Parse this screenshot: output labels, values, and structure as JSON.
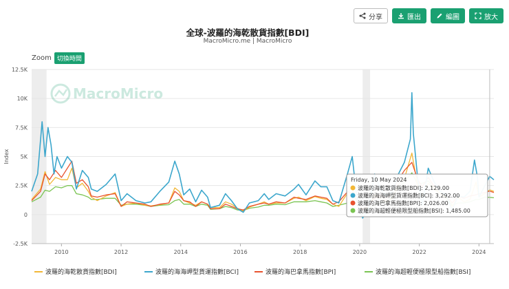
{
  "toolbar": {
    "share_label": "分享",
    "export_label": "匯出",
    "edit_label": "編圖",
    "fullscreen_label": "放大"
  },
  "zoom": {
    "label": "Zoom",
    "toggle_label": "切換時間"
  },
  "watermark": "MacroMicro",
  "colors": {
    "BDI": "#f2b736",
    "BCI": "#3ba6cc",
    "BPI": "#e8522e",
    "BSI": "#7ac452",
    "accent": "#1aa071",
    "recession": "#ededed"
  },
  "chart_data": {
    "type": "line",
    "title": "全球-波羅的海乾散貨指數[BDI]",
    "subtitle": "MacroMicro.me | MacroMicro",
    "ylabel": "Index",
    "ylim": [
      -2500,
      12500
    ],
    "yticks": [
      -2500,
      0,
      2500,
      5000,
      7500,
      10000,
      12500
    ],
    "ytick_labels": [
      "-2.5K",
      "0",
      "2.5K",
      "5K",
      "7.5K",
      "10K",
      "12.5K"
    ],
    "xlim": [
      2009.0,
      2024.5
    ],
    "xticks": [
      2010,
      2012,
      2014,
      2016,
      2018,
      2020,
      2022,
      2024
    ],
    "xtick_labels": [
      "2010",
      "2012",
      "2014",
      "2016",
      "2018",
      "2020",
      "2022",
      "2024"
    ],
    "shaded_periods": [
      [
        2009.0,
        2009.5
      ],
      [
        2020.1,
        2020.35
      ]
    ],
    "tooltip": {
      "date": "Friday, 10 May 2024",
      "rows": [
        {
          "key": "BDI",
          "text": "波羅的海乾散貨指數[BDI]: 2,129.00"
        },
        {
          "key": "BCI",
          "text": "波羅的海海岬型貨運指數[BCI]: 3,292.00"
        },
        {
          "key": "BPI",
          "text": "波羅的海巴拿馬指數[BPI]: 2,026.00"
        },
        {
          "key": "BSI",
          "text": "波羅的海超輕便極限型船指數[BSI]: 1,485.00"
        }
      ]
    },
    "legend_position": "bottom",
    "series": [
      {
        "key": "BDI",
        "name": "波羅的海乾散貨指數[BDI]",
        "x": [
          2009.0,
          2009.3,
          2009.45,
          2009.6,
          2009.8,
          2010.0,
          2010.2,
          2010.35,
          2010.5,
          2010.7,
          2010.9,
          2011.0,
          2011.2,
          2011.5,
          2011.8,
          2012.0,
          2012.2,
          2012.5,
          2012.8,
          2013.0,
          2013.3,
          2013.6,
          2013.8,
          2013.95,
          2014.1,
          2014.3,
          2014.5,
          2014.7,
          2014.9,
          2015.0,
          2015.3,
          2015.5,
          2015.7,
          2015.9,
          2016.1,
          2016.3,
          2016.6,
          2016.8,
          2016.95,
          2017.2,
          2017.5,
          2017.8,
          2017.95,
          2018.2,
          2018.5,
          2018.7,
          2018.9,
          2019.1,
          2019.3,
          2019.6,
          2019.75,
          2019.9,
          2020.1,
          2020.3,
          2020.5,
          2020.7,
          2020.9,
          2021.1,
          2021.3,
          2021.5,
          2021.75,
          2021.95,
          2022.1,
          2022.3,
          2022.5,
          2022.7,
          2022.9,
          2023.1,
          2023.3,
          2023.5,
          2023.7,
          2023.9,
          2024.0,
          2024.2,
          2024.36,
          2024.5
        ],
        "y": [
          1300,
          2200,
          3700,
          2600,
          3200,
          3000,
          3000,
          4000,
          2300,
          2700,
          2000,
          1500,
          1200,
          1600,
          1900,
          700,
          900,
          1000,
          800,
          750,
          850,
          1000,
          2300,
          2000,
          1200,
          1000,
          800,
          1100,
          900,
          600,
          600,
          1100,
          900,
          550,
          300,
          650,
          900,
          1100,
          900,
          1000,
          1000,
          1400,
          1500,
          1200,
          1550,
          1400,
          1300,
          900,
          700,
          1900,
          2400,
          1100,
          500,
          600,
          1700,
          1400,
          1100,
          1400,
          2600,
          3100,
          5300,
          2400,
          1600,
          2700,
          2200,
          1800,
          1400,
          700,
          1500,
          1100,
          1300,
          2800,
          1500,
          1800,
          2129,
          2000
        ]
      },
      {
        "key": "BCI",
        "name": "波羅的海海岬型貨運指數[BCI]",
        "x": [
          2009.0,
          2009.2,
          2009.35,
          2009.45,
          2009.55,
          2009.65,
          2009.75,
          2009.85,
          2010.0,
          2010.2,
          2010.35,
          2010.5,
          2010.7,
          2010.9,
          2011.0,
          2011.2,
          2011.5,
          2011.8,
          2012.0,
          2012.2,
          2012.5,
          2012.8,
          2013.0,
          2013.3,
          2013.6,
          2013.8,
          2013.95,
          2014.1,
          2014.3,
          2014.5,
          2014.7,
          2014.9,
          2015.0,
          2015.3,
          2015.5,
          2015.7,
          2015.9,
          2016.1,
          2016.3,
          2016.6,
          2016.8,
          2016.95,
          2017.2,
          2017.5,
          2017.8,
          2017.95,
          2018.2,
          2018.5,
          2018.7,
          2018.9,
          2019.1,
          2019.3,
          2019.6,
          2019.75,
          2019.9,
          2020.1,
          2020.3,
          2020.5,
          2020.7,
          2020.9,
          2021.1,
          2021.3,
          2021.5,
          2021.7,
          2021.75,
          2021.8,
          2021.95,
          2022.1,
          2022.3,
          2022.5,
          2022.7,
          2022.9,
          2023.1,
          2023.3,
          2023.5,
          2023.7,
          2023.85,
          2023.95,
          2024.0,
          2024.2,
          2024.36,
          2024.5
        ],
        "y": [
          2000,
          3500,
          8000,
          5000,
          7500,
          6000,
          3500,
          5000,
          4000,
          5000,
          4500,
          2200,
          3800,
          3200,
          2200,
          2000,
          2600,
          3500,
          1200,
          1800,
          1200,
          1000,
          1100,
          2000,
          2800,
          4600,
          3500,
          1700,
          2200,
          1100,
          2100,
          1500,
          600,
          800,
          1800,
          1200,
          500,
          200,
          1000,
          1200,
          1800,
          1300,
          1800,
          1600,
          2200,
          2600,
          1700,
          2900,
          2400,
          2400,
          1200,
          1000,
          3600,
          5000,
          1500,
          -300,
          500,
          3500,
          2200,
          1600,
          2000,
          3500,
          4500,
          6500,
          10500,
          7000,
          3000,
          800,
          4000,
          2800,
          2000,
          1700,
          400,
          1600,
          1500,
          2000,
          4700,
          3200,
          1500,
          2500,
          3292,
          3000
        ]
      },
      {
        "key": "BPI",
        "name": "波羅的海巴拿馬指數[BPI]",
        "x": [
          2009.0,
          2009.3,
          2009.45,
          2009.6,
          2009.8,
          2010.0,
          2010.2,
          2010.35,
          2010.5,
          2010.7,
          2010.9,
          2011.0,
          2011.2,
          2011.5,
          2011.8,
          2012.0,
          2012.2,
          2012.5,
          2012.8,
          2013.0,
          2013.3,
          2013.6,
          2013.8,
          2013.95,
          2014.1,
          2014.3,
          2014.5,
          2014.7,
          2014.9,
          2015.0,
          2015.3,
          2015.5,
          2015.7,
          2015.9,
          2016.1,
          2016.3,
          2016.6,
          2016.8,
          2016.95,
          2017.2,
          2017.5,
          2017.8,
          2017.95,
          2018.2,
          2018.5,
          2018.7,
          2018.9,
          2019.1,
          2019.3,
          2019.6,
          2019.75,
          2019.9,
          2020.1,
          2020.3,
          2020.5,
          2020.7,
          2020.9,
          2021.1,
          2021.3,
          2021.5,
          2021.75,
          2021.95,
          2022.1,
          2022.3,
          2022.5,
          2022.7,
          2022.9,
          2023.1,
          2023.3,
          2023.5,
          2023.7,
          2023.9,
          2024.0,
          2024.2,
          2024.36,
          2024.5
        ],
        "y": [
          1200,
          2000,
          3500,
          3000,
          3800,
          3200,
          4000,
          4600,
          2700,
          3000,
          2400,
          1600,
          1500,
          1700,
          1800,
          700,
          1100,
          1000,
          900,
          700,
          900,
          1000,
          2000,
          1700,
          1200,
          1100,
          700,
          1100,
          900,
          500,
          500,
          900,
          700,
          500,
          400,
          700,
          900,
          1000,
          900,
          1100,
          1000,
          1500,
          1400,
          1300,
          1600,
          1500,
          1400,
          900,
          1100,
          2000,
          1800,
          1200,
          400,
          800,
          1400,
          1700,
          1300,
          2100,
          3000,
          3800,
          4500,
          3000,
          2400,
          3200,
          2400,
          2000,
          1700,
          1000,
          1600,
          1400,
          1600,
          1700,
          1800,
          1900,
          2026,
          1900
        ]
      },
      {
        "key": "BSI",
        "name": "波羅的海超輕便極限型船指數[BSI]",
        "x": [
          2009.0,
          2009.3,
          2009.45,
          2009.6,
          2009.8,
          2010.0,
          2010.2,
          2010.35,
          2010.5,
          2010.7,
          2010.9,
          2011.0,
          2011.2,
          2011.5,
          2011.8,
          2012.0,
          2012.2,
          2012.5,
          2012.8,
          2013.0,
          2013.3,
          2013.6,
          2013.8,
          2013.95,
          2014.1,
          2014.3,
          2014.5,
          2014.7,
          2014.9,
          2015.0,
          2015.3,
          2015.5,
          2015.7,
          2015.9,
          2016.1,
          2016.3,
          2016.6,
          2016.8,
          2016.95,
          2017.2,
          2017.5,
          2017.8,
          2017.95,
          2018.2,
          2018.5,
          2018.7,
          2018.9,
          2019.1,
          2019.3,
          2019.6,
          2019.75,
          2019.9,
          2020.1,
          2020.3,
          2020.5,
          2020.7,
          2020.9,
          2021.1,
          2021.3,
          2021.5,
          2021.75,
          2021.95,
          2022.1,
          2022.3,
          2022.5,
          2022.7,
          2022.9,
          2023.1,
          2023.3,
          2023.5,
          2023.7,
          2023.9,
          2024.0,
          2024.2,
          2024.36,
          2024.5
        ],
        "y": [
          1100,
          1500,
          2100,
          2000,
          2400,
          2300,
          2500,
          2500,
          1800,
          1700,
          1500,
          1300,
          1300,
          1400,
          1400,
          800,
          900,
          900,
          800,
          700,
          800,
          850,
          1200,
          1300,
          900,
          900,
          700,
          900,
          800,
          450,
          500,
          700,
          600,
          400,
          350,
          550,
          650,
          800,
          800,
          900,
          850,
          1100,
          1100,
          1100,
          1200,
          1100,
          1000,
          700,
          800,
          1000,
          1200,
          900,
          500,
          500,
          800,
          1100,
          1000,
          1600,
          2300,
          2800,
          3600,
          2600,
          2700,
          2900,
          2300,
          1800,
          1500,
          800,
          1000,
          1000,
          1100,
          1300,
          1300,
          1500,
          1485,
          1450
        ]
      }
    ]
  }
}
